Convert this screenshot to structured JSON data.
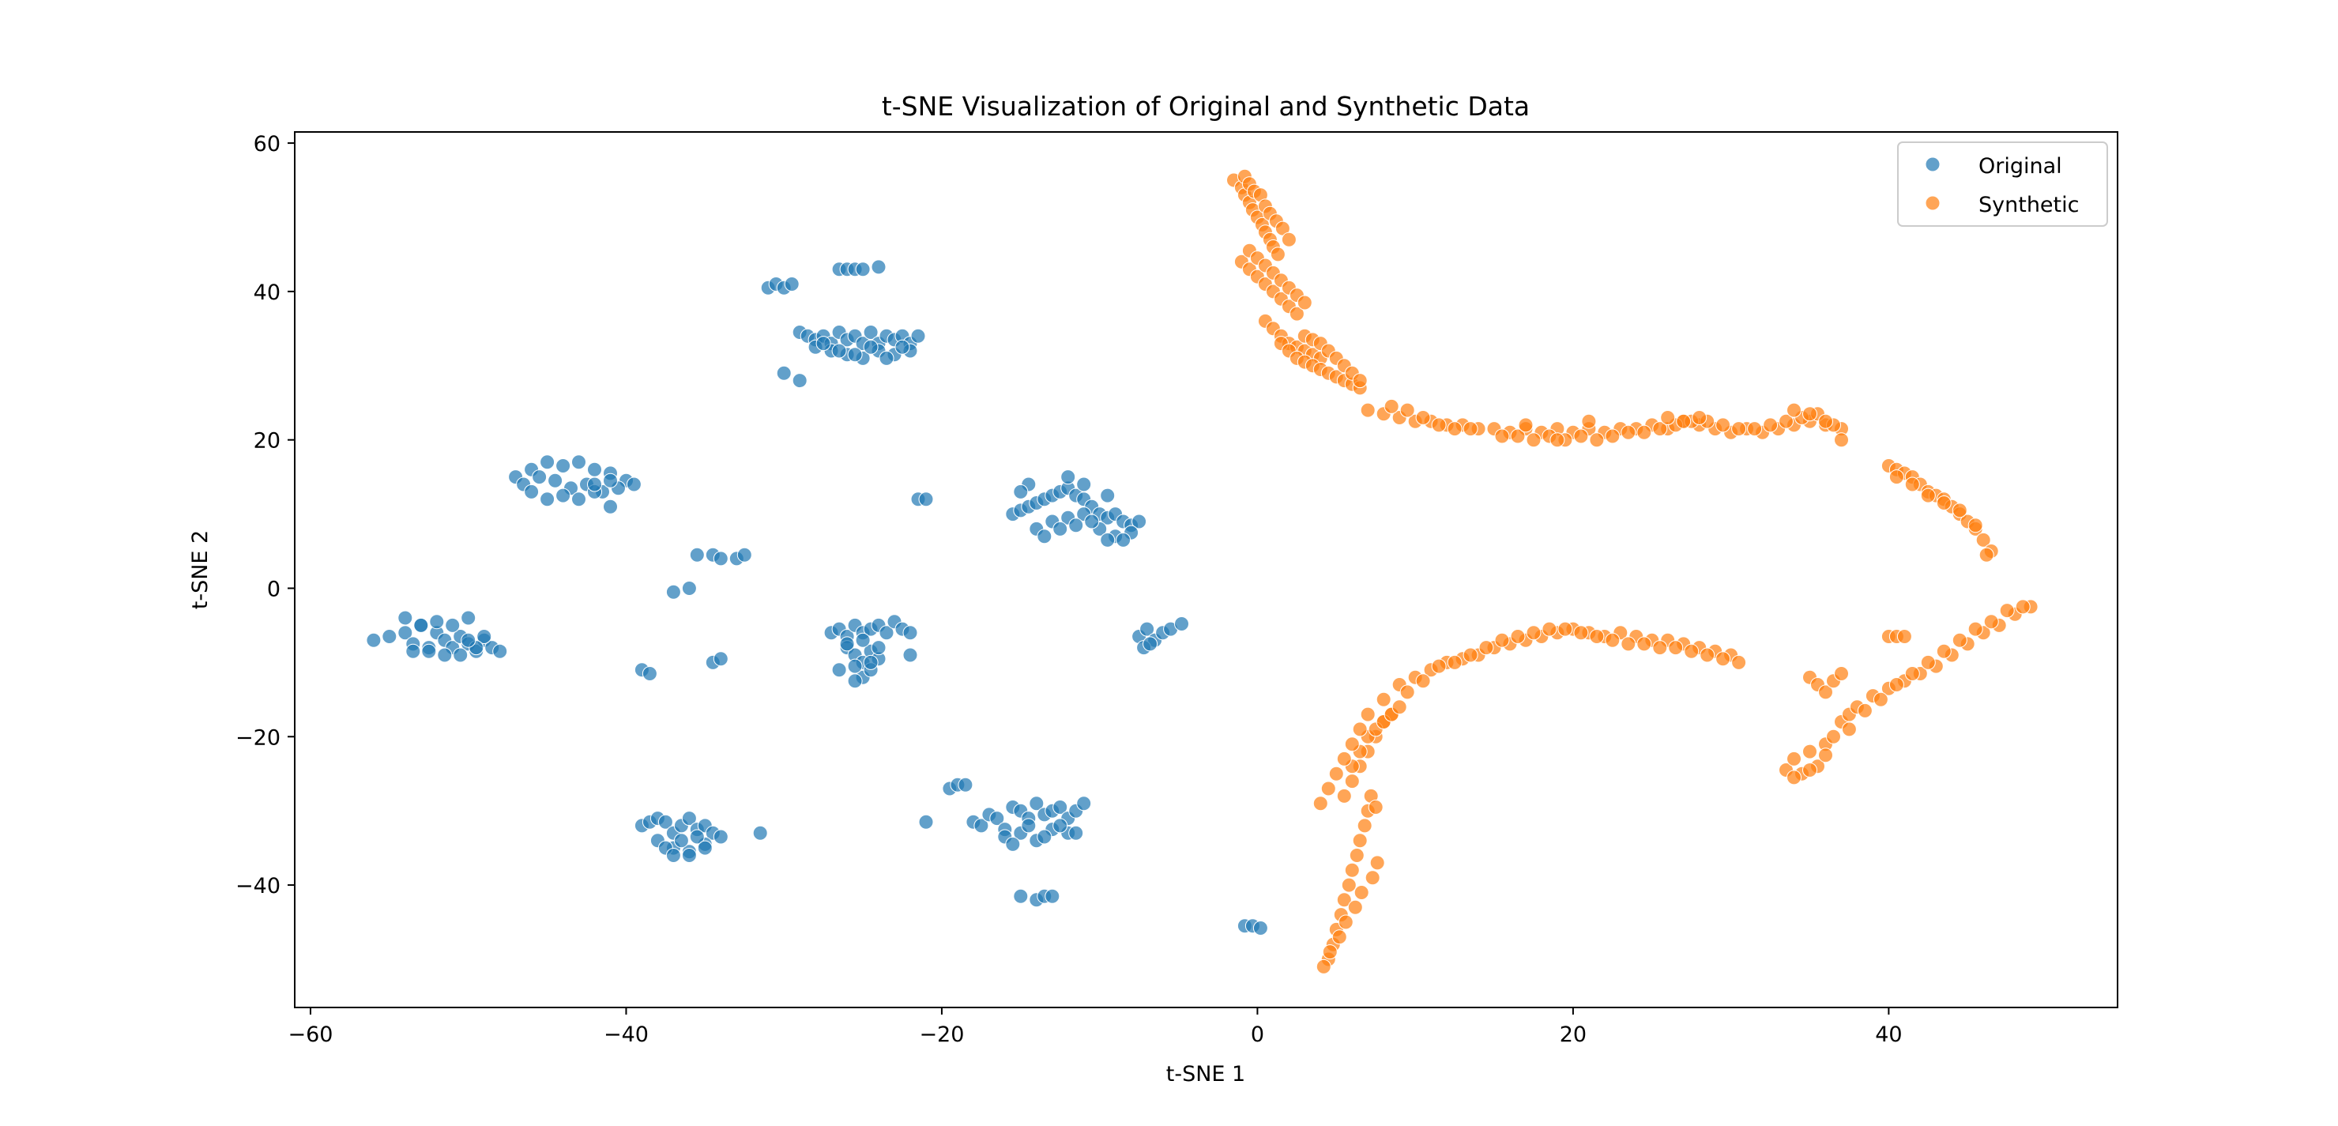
{
  "chart_data": {
    "type": "scatter",
    "title": "t-SNE Visualization of Original and Synthetic Data",
    "xlabel": "t-SNE 1",
    "ylabel": "t-SNE 2",
    "xlim": [
      -61,
      54.5
    ],
    "ylim": [
      -56.5,
      61.5
    ],
    "xticks": [
      -60,
      -40,
      -20,
      0,
      20,
      40
    ],
    "yticks": [
      -40,
      -20,
      0,
      20,
      40,
      60
    ],
    "xtick_labels": [
      "−60",
      "−40",
      "−20",
      "0",
      "20",
      "40"
    ],
    "ytick_labels": [
      "−40",
      "−20",
      "0",
      "20",
      "40",
      "60"
    ],
    "grid": false,
    "legend_position": "upper-right",
    "series": [
      {
        "name": "Original",
        "color": "#1f77b4",
        "x": [
          -56,
          -55,
          -54,
          -53.5,
          -53,
          -52.5,
          -52,
          -51.5,
          -51,
          -50.5,
          -50,
          -49.5,
          -49,
          -48.5,
          -48,
          -54,
          -53,
          -52,
          -51,
          -50,
          -49,
          -52.5,
          -51.5,
          -50.5,
          -49.5,
          -53.5,
          -50,
          -47,
          -46,
          -45,
          -44,
          -43,
          -42,
          -41,
          -40,
          -39.5,
          -46.5,
          -45.5,
          -44.5,
          -43.5,
          -42.5,
          -41.5,
          -40.5,
          -45,
          -44,
          -43,
          -42,
          -41,
          -46,
          -42,
          -41,
          -31,
          -30.5,
          -30,
          -29.5,
          -26.5,
          -26,
          -25.5,
          -25,
          -24,
          -29,
          -28.5,
          -28,
          -27.5,
          -27,
          -26.5,
          -26,
          -25.5,
          -25,
          -24.5,
          -24,
          -23.5,
          -23,
          -22.5,
          -22,
          -21.5,
          -28,
          -27,
          -26,
          -25,
          -24,
          -23,
          -22,
          -27.5,
          -26.5,
          -25.5,
          -24.5,
          -23.5,
          -22.5,
          -30,
          -29,
          -21.5,
          -21,
          -37,
          -36,
          -35.5,
          -34.5,
          -34,
          -33,
          -32.5,
          -39,
          -38.5,
          -34.5,
          -34,
          -27,
          -26.5,
          -26,
          -25.5,
          -25,
          -24.5,
          -24,
          -23.5,
          -23,
          -22.5,
          -22,
          -26,
          -25.5,
          -25,
          -24.5,
          -24,
          -26.5,
          -25,
          -24.5,
          -25.5,
          -26,
          -25,
          -24,
          -22,
          -25.5,
          -24.5,
          -15.5,
          -15,
          -14.5,
          -14,
          -13.5,
          -13,
          -12.5,
          -12,
          -11.5,
          -11,
          -10.5,
          -10,
          -9.5,
          -9,
          -8.5,
          -8,
          -7.5,
          -14,
          -13,
          -12,
          -11,
          -10,
          -9,
          -8,
          -13.5,
          -12.5,
          -11.5,
          -10.5,
          -9.5,
          -8.5,
          -14.5,
          -15,
          -12,
          -11,
          -9.5,
          -7.5,
          -7,
          -6.5,
          -6,
          -5.5,
          -7.2,
          -6.8,
          -4.8,
          -39,
          -38.5,
          -38,
          -37.5,
          -37,
          -36.5,
          -36,
          -35.5,
          -35,
          -34.5,
          -34,
          -38,
          -37,
          -36,
          -35,
          -37.5,
          -36.5,
          -35.5,
          -36,
          -37,
          -35,
          -31.5,
          -21,
          -19.5,
          -19,
          -18.5,
          -18,
          -17.5,
          -17,
          -16.5,
          -16,
          -15.5,
          -15,
          -14.5,
          -14,
          -13.5,
          -13,
          -12.5,
          -12,
          -11.5,
          -11,
          -16,
          -15,
          -14,
          -13,
          -12,
          -15.5,
          -14.5,
          -13.5,
          -12.5,
          -11.5,
          -15,
          -14,
          -13.5,
          -13,
          -0.8,
          -0.3,
          0.2
        ],
        "y": [
          -7,
          -6.5,
          -6,
          -7.5,
          -5,
          -8,
          -6,
          -7,
          -8,
          -6.5,
          -7.5,
          -8.5,
          -7,
          -8,
          -8.5,
          -4,
          -5,
          -4.5,
          -5,
          -4,
          -6.5,
          -8.5,
          -9,
          -9,
          -8,
          -8.5,
          -7,
          15,
          16,
          17,
          16.5,
          17,
          16,
          15.5,
          14.5,
          14,
          14,
          15,
          14.5,
          13.5,
          14,
          13,
          13.5,
          12,
          12.5,
          12,
          13,
          11,
          13,
          14,
          14.5,
          40.5,
          41,
          40.5,
          41,
          43,
          43,
          43,
          43,
          43.3,
          34.5,
          34,
          33.5,
          34,
          33,
          34.5,
          33.5,
          34,
          33,
          34.5,
          33,
          34,
          33.5,
          34,
          33,
          34,
          32.5,
          32,
          31.5,
          31,
          32,
          31.5,
          32,
          33,
          32,
          31.5,
          32.5,
          31,
          32.5,
          29,
          28,
          12,
          12,
          -0.5,
          0,
          4.5,
          4.5,
          4,
          4,
          4.5,
          -11,
          -11.5,
          -10,
          -9.5,
          -6,
          -5.5,
          -6.5,
          -5,
          -6,
          -5.5,
          -5,
          -6,
          -4.5,
          -5.5,
          -6,
          -8,
          -9,
          -10,
          -8.5,
          -9.5,
          -11,
          -12,
          -11,
          -12.5,
          -7.5,
          -7,
          -8,
          -9,
          -10.5,
          -10,
          10,
          10.5,
          11,
          11.5,
          12,
          12.5,
          13,
          13.5,
          12.5,
          12,
          11,
          10,
          9.5,
          10,
          9,
          8.5,
          9,
          8,
          9,
          9.5,
          10,
          8,
          7,
          7.5,
          7,
          8,
          8.5,
          9,
          6.5,
          6.5,
          14,
          13,
          15,
          14,
          12.5,
          -6.5,
          -5.5,
          -7,
          -6,
          -5.5,
          -8,
          -7.5,
          -4.8,
          -32,
          -31.5,
          -31,
          -31.5,
          -33,
          -32,
          -31,
          -32.5,
          -32,
          -33,
          -33.5,
          -34,
          -35,
          -35.5,
          -34.5,
          -35,
          -34,
          -33.5,
          -36,
          -36,
          -35,
          -33,
          -31.5,
          -27,
          -26.5,
          -26.5,
          -31.5,
          -32,
          -30.5,
          -31,
          -32.5,
          -29.5,
          -30,
          -31,
          -29,
          -30.5,
          -30,
          -29.5,
          -31,
          -30,
          -29,
          -33.5,
          -33,
          -34,
          -32.5,
          -33,
          -34.5,
          -32,
          -33.5,
          -32,
          -33,
          -41.5,
          -42,
          -41.5,
          -41.5,
          -45.5,
          -45.5,
          -45.8
        ]
      },
      {
        "name": "Synthetic",
        "color": "#ff7f0e",
        "x": [
          -1.5,
          -1,
          -0.8,
          -0.5,
          -0.3,
          0,
          0.3,
          0.5,
          0.8,
          1,
          1.3,
          -0.8,
          -0.5,
          -0.2,
          0.2,
          0.5,
          0.8,
          1.2,
          1.6,
          2,
          -1,
          -0.5,
          0,
          0.5,
          1,
          1.5,
          2,
          2.5,
          -0.5,
          0,
          0.5,
          1,
          1.5,
          2,
          2.5,
          3,
          0.5,
          1,
          1.5,
          2,
          2.5,
          3,
          3.5,
          4,
          1.5,
          2,
          2.5,
          3,
          3.5,
          4,
          4.5,
          5,
          5.5,
          6,
          6.5,
          3,
          3.5,
          4,
          4.5,
          5,
          5.5,
          6,
          6.5,
          7,
          8,
          9,
          10,
          11,
          12,
          13,
          14,
          8.5,
          9.5,
          10.5,
          11.5,
          12.5,
          13.5,
          15,
          16,
          17,
          18,
          19,
          20,
          21,
          22,
          23,
          24,
          25,
          26,
          27,
          28,
          29,
          30,
          31,
          32,
          33,
          34,
          35,
          36,
          37,
          15.5,
          16.5,
          17.5,
          18.5,
          19.5,
          20.5,
          21.5,
          22.5,
          23.5,
          24.5,
          25.5,
          26.5,
          27.5,
          28.5,
          29.5,
          30.5,
          31.5,
          32.5,
          33.5,
          34.5,
          35.5,
          36.5,
          17,
          19,
          21,
          26,
          27,
          28,
          34,
          35,
          36,
          37,
          40,
          40.5,
          41,
          41.5,
          42,
          42.5,
          43,
          43.5,
          44,
          44.5,
          45,
          45.5,
          46,
          46.5,
          40.5,
          41.5,
          42.5,
          43.5,
          44.5,
          45.5,
          46.2,
          4.5,
          4.8,
          5,
          5.3,
          5.5,
          5.8,
          6,
          6.3,
          6.5,
          6.8,
          7,
          7.2,
          4.2,
          4.6,
          5.2,
          5.6,
          6.2,
          6.6,
          7.3,
          7.6,
          5.5,
          6,
          6.5,
          7,
          7.5,
          8,
          8.5,
          6,
          6.5,
          7,
          7.5,
          8,
          8.5,
          9,
          4,
          4.5,
          5,
          5.5,
          6,
          6.5,
          7,
          7.5,
          8,
          9,
          10,
          11,
          12,
          13,
          14,
          15,
          16,
          17,
          18,
          19,
          20,
          21,
          22,
          23,
          24,
          25,
          26,
          27,
          28,
          29,
          30,
          30.5,
          9.5,
          10.5,
          11.5,
          12.5,
          13.5,
          14.5,
          15.5,
          16.5,
          17.5,
          18.5,
          19.5,
          20.5,
          21.5,
          22.5,
          23.5,
          24.5,
          25.5,
          26.5,
          27.5,
          28.5,
          29.5,
          40,
          40.5,
          41,
          33.5,
          34,
          34.5,
          35,
          35.5,
          36,
          36.5,
          37,
          37.5,
          38,
          39,
          40,
          41,
          42,
          43,
          44,
          45,
          46,
          47,
          48,
          49,
          34,
          35,
          36,
          37.5,
          38.5,
          39.5,
          40.5,
          41.5,
          42.5,
          43.5,
          44.5,
          45.5,
          46.5,
          47.5,
          48.5,
          35,
          35.5,
          36,
          36.5,
          37
        ],
        "y": [
          55,
          54,
          53,
          52,
          51,
          50,
          49,
          48,
          47,
          46,
          45,
          55.5,
          54.5,
          53.5,
          53,
          51.5,
          50.5,
          49.5,
          48.5,
          47,
          44,
          43,
          42,
          41,
          40,
          39,
          38,
          37,
          45.5,
          44.5,
          43.5,
          42.5,
          41.5,
          40.5,
          39.5,
          38.5,
          36,
          35,
          34,
          33,
          32.5,
          32,
          31.5,
          31,
          33,
          32,
          31,
          30.5,
          30,
          29.5,
          29,
          28.5,
          28,
          27.5,
          27,
          34,
          33.5,
          33,
          32,
          31,
          30,
          29,
          28,
          24,
          23.5,
          23,
          22.5,
          22.5,
          22,
          22,
          21.5,
          24.5,
          24,
          23,
          22,
          21.5,
          21.5,
          21.5,
          21,
          21.5,
          21,
          21.5,
          21,
          21.5,
          21,
          21.5,
          21.5,
          22,
          21.5,
          22.5,
          22,
          21.5,
          21,
          21.5,
          21,
          21.5,
          22,
          22.5,
          22,
          21.5,
          20.5,
          20.5,
          20,
          20.5,
          20,
          20.5,
          20,
          20.5,
          21,
          21,
          21.5,
          22,
          22.5,
          22.5,
          22,
          21.5,
          21.5,
          22,
          22.5,
          23,
          23.5,
          22,
          22,
          20,
          22.5,
          23,
          22.5,
          23,
          24,
          23.5,
          22.5,
          20,
          16.5,
          16,
          15.5,
          15,
          14,
          13,
          12.5,
          12,
          11,
          10,
          9,
          8,
          6.5,
          5,
          15,
          14,
          12.5,
          11.5,
          10.5,
          8.5,
          4.5,
          -50,
          -48,
          -46,
          -44,
          -42,
          -40,
          -38,
          -36,
          -34,
          -32,
          -30,
          -28,
          -51,
          -49,
          -47,
          -45,
          -43,
          -41,
          -39,
          -37,
          -28,
          -26,
          -24,
          -22,
          -20,
          -18,
          -17,
          -24,
          -22,
          -20,
          -19,
          -18,
          -17,
          -16,
          -29,
          -27,
          -25,
          -23,
          -21,
          -19,
          -17,
          -29.5,
          -15,
          -13,
          -12,
          -11,
          -10,
          -9.5,
          -9,
          -8,
          -7.5,
          -7,
          -6.5,
          -6,
          -5.5,
          -6,
          -6.5,
          -6,
          -6.5,
          -7,
          -7,
          -7.5,
          -8,
          -8.5,
          -9,
          -10,
          -14,
          -12.5,
          -10.5,
          -10,
          -9,
          -8,
          -7,
          -6.5,
          -6,
          -5.5,
          -5.5,
          -6,
          -6.5,
          -7,
          -7.5,
          -7.5,
          -8,
          -8,
          -8.5,
          -9,
          -9.5,
          -6.5,
          -6.5,
          -6.5,
          -24.5,
          -23,
          -25,
          -22,
          -24,
          -21,
          -20,
          -18,
          -17,
          -16,
          -14.5,
          -13.5,
          -12.5,
          -11.5,
          -10.5,
          -9,
          -7.5,
          -6,
          -5,
          -3.5,
          -2.5,
          -25.5,
          -24.5,
          -22.5,
          -19,
          -16.5,
          -15,
          -13,
          -11.5,
          -10,
          -8.5,
          -7,
          -5.5,
          -4.5,
          -3,
          -2.5,
          -12,
          -13,
          -14,
          -12.5,
          -11.5
        ]
      }
    ]
  }
}
